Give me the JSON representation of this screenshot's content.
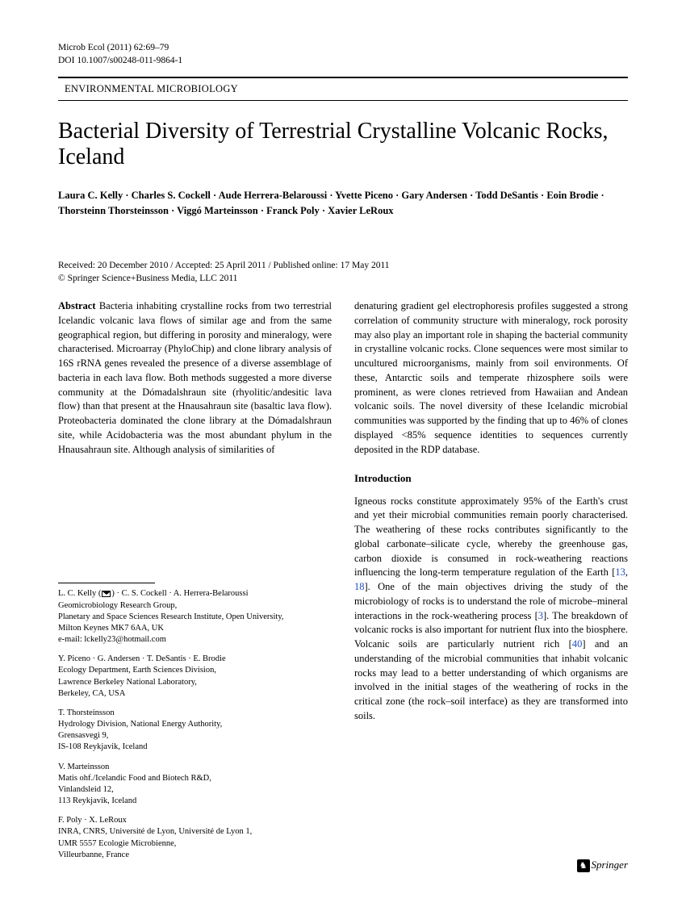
{
  "header": {
    "journal_line": "Microb Ecol (2011) 62:69–79",
    "doi_line": "DOI 10.1007/s00248-011-9864-1",
    "category": "ENVIRONMENTAL MICROBIOLOGY"
  },
  "title": "Bacterial Diversity of Terrestrial Crystalline Volcanic Rocks, Iceland",
  "authors": "Laura C. Kelly · Charles S. Cockell · Aude Herrera-Belaroussi · Yvette Piceno · Gary Andersen · Todd DeSantis · Eoin Brodie · Thorsteinn Thorsteinsson · Viggó Marteinsson · Franck Poly · Xavier LeRoux",
  "history": "Received: 20 December 2010 / Accepted: 25 April 2011 / Published online: 17 May 2011",
  "copyright": "© Springer Science+Business Media, LLC 2011",
  "abstract_label": "Abstract",
  "abstract_left": " Bacteria inhabiting crystalline rocks from two terrestrial Icelandic volcanic lava flows of similar age and from the same geographical region, but differing in porosity and mineralogy, were characterised. Microarray (PhyloChip) and clone library analysis of 16S rRNA genes revealed the presence of a diverse assemblage of bacteria in each lava flow. Both methods suggested a more diverse community at the Dómadalshraun site (rhyolitic/andesitic lava flow) than that present at the Hnausahraun site (basaltic lava flow). Proteobacteria dominated the clone library at the Dómadalshraun site, while Acidobacteria was the most abundant phylum in the Hnausahraun site. Although analysis of similarities of",
  "abstract_right": "denaturing gradient gel electrophoresis profiles suggested a strong correlation of community structure with mineralogy, rock porosity may also play an important role in shaping the bacterial community in crystalline volcanic rocks. Clone sequences were most similar to uncultured microorganisms, mainly from soil environments. Of these, Antarctic soils and temperate rhizosphere soils were prominent, as were clones retrieved from Hawaiian and Andean volcanic soils. The novel diversity of these Icelandic microbial communities was supported by the finding that up to 46% of clones displayed <85% sequence identities to sequences currently deposited in the RDP database.",
  "introduction": {
    "heading": "Introduction",
    "p1a": "Igneous rocks constitute approximately 95% of the Earth's crust and yet their microbial communities remain poorly characterised. The weathering of these rocks contributes significantly to the global carbonate–silicate cycle, whereby the greenhouse gas, carbon dioxide is consumed in rock-weathering reactions influencing the long-term temperature regulation of the Earth [",
    "c1": "13",
    "sep1": ", ",
    "c2": "18",
    "p1b": "]. One of the main objectives driving the study of the microbiology of rocks is to understand the role of microbe–mineral interactions in the rock-weathering process [",
    "c3": "3",
    "p1c": "]. The breakdown of volcanic rocks is also important for nutrient flux into the biosphere. Volcanic soils are particularly nutrient rich [",
    "c4": "40",
    "p1d": "] and an understanding of the microbial communities that inhabit volcanic rocks may lead to a better understanding of which organisms are involved in the initial stages of the weathering of rocks in the critical zone (the rock–soil interface) as they are transformed into soils."
  },
  "affiliations": {
    "a1_l1": "L. C. Kelly (",
    "a1_l1b": ") · C. S. Cockell · A. Herrera-Belaroussi",
    "a1_l2": "Geomicrobiology Research Group,",
    "a1_l3": "Planetary and Space Sciences Research Institute, Open University,",
    "a1_l4": "Milton Keynes MK7 6AA, UK",
    "a1_l5": "e-mail: lckelly23@hotmail.com",
    "a2_l1": "Y. Piceno · G. Andersen · T. DeSantis · E. Brodie",
    "a2_l2": "Ecology Department, Earth Sciences Division,",
    "a2_l3": "Lawrence Berkeley National Laboratory,",
    "a2_l4": "Berkeley, CA, USA",
    "a3_l1": "T. Thorsteinsson",
    "a3_l2": "Hydrology Division, National Energy Authority,",
    "a3_l3": "Grensasvegi 9,",
    "a3_l4": "IS-108 Reykjavik, Iceland",
    "a4_l1": "V. Marteinsson",
    "a4_l2": "Matis ohf./Icelandic Food and Biotech R&D,",
    "a4_l3": "Vinlandsleid 12,",
    "a4_l4": "113 Reykjavik, Iceland",
    "a5_l1": "F. Poly · X. LeRoux",
    "a5_l2": "INRA, CNRS, Université de Lyon, Université de Lyon 1,",
    "a5_l3": "UMR 5557 Ecologie Microbienne,",
    "a5_l4": "Villeurbanne, France"
  },
  "publisher_logo": "Springer"
}
